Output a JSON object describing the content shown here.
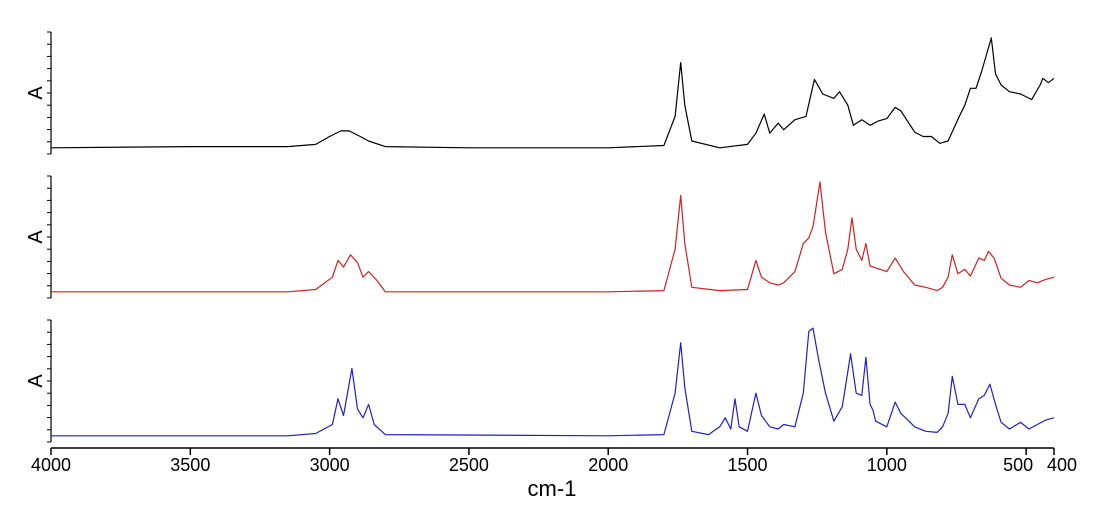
{
  "chart_data": {
    "type": "line",
    "title": "",
    "xlabel": "cm-1",
    "ylabel": "A",
    "xlim": [
      4000,
      400
    ],
    "x_reversed": true,
    "x_ticks": [
      4000,
      3500,
      3000,
      2500,
      2000,
      1500,
      1000,
      500,
      400
    ],
    "x_tick_labels": [
      "4000",
      "3500",
      "3000",
      "2500",
      "2000",
      "1500",
      "1000",
      "500",
      "400"
    ],
    "grid": false,
    "legend": "none",
    "panels": [
      {
        "ylabel": "A",
        "color": "#000000",
        "baseline": 0.02,
        "points": [
          [
            4000,
            0.02
          ],
          [
            3500,
            0.03
          ],
          [
            3150,
            0.03
          ],
          [
            3050,
            0.05
          ],
          [
            3000,
            0.12
          ],
          [
            2960,
            0.17
          ],
          [
            2930,
            0.17
          ],
          [
            2890,
            0.12
          ],
          [
            2860,
            0.08
          ],
          [
            2800,
            0.03
          ],
          [
            2500,
            0.02
          ],
          [
            2000,
            0.02
          ],
          [
            1800,
            0.04
          ],
          [
            1760,
            0.3
          ],
          [
            1740,
            0.78
          ],
          [
            1725,
            0.4
          ],
          [
            1700,
            0.08
          ],
          [
            1600,
            0.02
          ],
          [
            1500,
            0.05
          ],
          [
            1470,
            0.15
          ],
          [
            1440,
            0.32
          ],
          [
            1420,
            0.15
          ],
          [
            1390,
            0.24
          ],
          [
            1370,
            0.18
          ],
          [
            1330,
            0.27
          ],
          [
            1290,
            0.3
          ],
          [
            1260,
            0.63
          ],
          [
            1230,
            0.5
          ],
          [
            1190,
            0.46
          ],
          [
            1170,
            0.52
          ],
          [
            1140,
            0.4
          ],
          [
            1120,
            0.22
          ],
          [
            1090,
            0.27
          ],
          [
            1060,
            0.22
          ],
          [
            1030,
            0.26
          ],
          [
            1000,
            0.28
          ],
          [
            970,
            0.38
          ],
          [
            950,
            0.35
          ],
          [
            900,
            0.16
          ],
          [
            870,
            0.12
          ],
          [
            840,
            0.12
          ],
          [
            810,
            0.06
          ],
          [
            780,
            0.08
          ],
          [
            740,
            0.3
          ],
          [
            720,
            0.4
          ],
          [
            700,
            0.55
          ],
          [
            680,
            0.55
          ],
          [
            660,
            0.7
          ],
          [
            640,
            0.87
          ],
          [
            625,
            1.0
          ],
          [
            610,
            0.68
          ],
          [
            590,
            0.58
          ],
          [
            560,
            0.52
          ],
          [
            520,
            0.5
          ],
          [
            480,
            0.45
          ],
          [
            450,
            0.58
          ],
          [
            440,
            0.64
          ],
          [
            420,
            0.6
          ],
          [
            400,
            0.64
          ]
        ]
      },
      {
        "ylabel": "A",
        "color": "#d42020",
        "baseline": 0.02,
        "points": [
          [
            4000,
            0.02
          ],
          [
            3500,
            0.02
          ],
          [
            3150,
            0.02
          ],
          [
            3050,
            0.04
          ],
          [
            2990,
            0.15
          ],
          [
            2970,
            0.3
          ],
          [
            2950,
            0.24
          ],
          [
            2925,
            0.35
          ],
          [
            2900,
            0.28
          ],
          [
            2880,
            0.15
          ],
          [
            2860,
            0.2
          ],
          [
            2830,
            0.12
          ],
          [
            2800,
            0.02
          ],
          [
            2000,
            0.02
          ],
          [
            1800,
            0.03
          ],
          [
            1760,
            0.4
          ],
          [
            1740,
            0.88
          ],
          [
            1725,
            0.45
          ],
          [
            1700,
            0.06
          ],
          [
            1600,
            0.03
          ],
          [
            1500,
            0.04
          ],
          [
            1470,
            0.3
          ],
          [
            1450,
            0.15
          ],
          [
            1420,
            0.1
          ],
          [
            1390,
            0.08
          ],
          [
            1370,
            0.1
          ],
          [
            1330,
            0.2
          ],
          [
            1300,
            0.45
          ],
          [
            1280,
            0.5
          ],
          [
            1265,
            0.6
          ],
          [
            1240,
            1.0
          ],
          [
            1220,
            0.55
          ],
          [
            1190,
            0.18
          ],
          [
            1160,
            0.22
          ],
          [
            1140,
            0.4
          ],
          [
            1125,
            0.68
          ],
          [
            1110,
            0.4
          ],
          [
            1090,
            0.3
          ],
          [
            1075,
            0.45
          ],
          [
            1060,
            0.25
          ],
          [
            1000,
            0.2
          ],
          [
            970,
            0.32
          ],
          [
            940,
            0.2
          ],
          [
            900,
            0.08
          ],
          [
            860,
            0.06
          ],
          [
            820,
            0.03
          ],
          [
            800,
            0.06
          ],
          [
            780,
            0.15
          ],
          [
            765,
            0.35
          ],
          [
            745,
            0.18
          ],
          [
            720,
            0.22
          ],
          [
            700,
            0.16
          ],
          [
            670,
            0.32
          ],
          [
            650,
            0.3
          ],
          [
            635,
            0.38
          ],
          [
            615,
            0.32
          ],
          [
            590,
            0.14
          ],
          [
            560,
            0.08
          ],
          [
            520,
            0.06
          ],
          [
            490,
            0.12
          ],
          [
            460,
            0.1
          ],
          [
            430,
            0.13
          ],
          [
            400,
            0.15
          ]
        ]
      },
      {
        "ylabel": "A",
        "color": "#2020c8",
        "baseline": 0.02,
        "points": [
          [
            4000,
            0.02
          ],
          [
            3500,
            0.02
          ],
          [
            3150,
            0.02
          ],
          [
            3050,
            0.04
          ],
          [
            2990,
            0.12
          ],
          [
            2970,
            0.35
          ],
          [
            2950,
            0.2
          ],
          [
            2920,
            0.62
          ],
          [
            2900,
            0.26
          ],
          [
            2880,
            0.18
          ],
          [
            2860,
            0.3
          ],
          [
            2840,
            0.12
          ],
          [
            2800,
            0.03
          ],
          [
            2000,
            0.02
          ],
          [
            1800,
            0.03
          ],
          [
            1760,
            0.4
          ],
          [
            1740,
            0.85
          ],
          [
            1725,
            0.45
          ],
          [
            1700,
            0.06
          ],
          [
            1640,
            0.03
          ],
          [
            1600,
            0.1
          ],
          [
            1580,
            0.18
          ],
          [
            1560,
            0.08
          ],
          [
            1545,
            0.35
          ],
          [
            1530,
            0.1
          ],
          [
            1500,
            0.06
          ],
          [
            1470,
            0.4
          ],
          [
            1450,
            0.2
          ],
          [
            1420,
            0.1
          ],
          [
            1390,
            0.08
          ],
          [
            1370,
            0.12
          ],
          [
            1330,
            0.1
          ],
          [
            1300,
            0.4
          ],
          [
            1280,
            0.95
          ],
          [
            1265,
            0.98
          ],
          [
            1245,
            0.7
          ],
          [
            1220,
            0.4
          ],
          [
            1190,
            0.15
          ],
          [
            1160,
            0.28
          ],
          [
            1130,
            0.75
          ],
          [
            1110,
            0.4
          ],
          [
            1090,
            0.38
          ],
          [
            1075,
            0.72
          ],
          [
            1060,
            0.3
          ],
          [
            1050,
            0.25
          ],
          [
            1040,
            0.15
          ],
          [
            1000,
            0.1
          ],
          [
            970,
            0.32
          ],
          [
            950,
            0.22
          ],
          [
            900,
            0.1
          ],
          [
            860,
            0.06
          ],
          [
            820,
            0.05
          ],
          [
            800,
            0.1
          ],
          [
            780,
            0.22
          ],
          [
            765,
            0.55
          ],
          [
            745,
            0.3
          ],
          [
            720,
            0.3
          ],
          [
            700,
            0.18
          ],
          [
            670,
            0.35
          ],
          [
            650,
            0.38
          ],
          [
            630,
            0.48
          ],
          [
            610,
            0.3
          ],
          [
            590,
            0.14
          ],
          [
            560,
            0.08
          ],
          [
            520,
            0.14
          ],
          [
            490,
            0.08
          ],
          [
            460,
            0.12
          ],
          [
            430,
            0.16
          ],
          [
            400,
            0.18
          ]
        ]
      }
    ]
  }
}
